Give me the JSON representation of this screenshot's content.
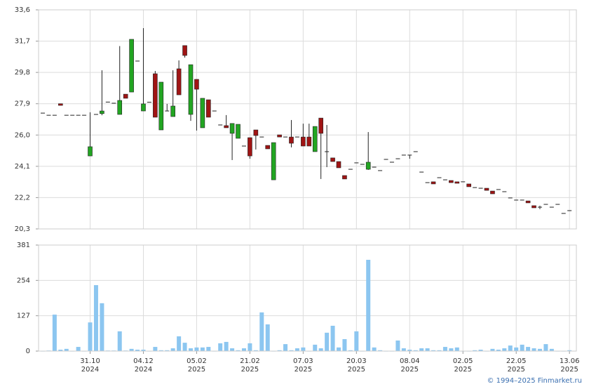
{
  "chart_data": [
    {
      "type": "candlestick",
      "open": [
        27.33,
        27.2,
        27.2,
        27.9,
        27.2,
        27.2,
        27.2,
        27.2,
        24.73,
        27.25,
        27.3,
        28.0,
        27.93,
        27.25,
        28.48,
        28.61,
        30.49,
        27.46,
        27.99,
        29.72,
        26.31,
        27.46,
        27.12,
        30.02,
        31.43,
        27.25,
        29.38,
        26.44,
        28.14,
        27.46,
        26.61,
        26.57,
        26.1,
        25.8,
        25.33,
        25.84,
        26.31,
        25.88,
        25.37,
        23.28,
        26.01,
        25.88,
        25.88,
        25.88,
        25.88,
        25.88,
        24.99,
        27.03,
        24.99,
        24.61,
        24.39,
        23.54,
        23.92,
        24.31,
        24.22,
        23.92,
        24.05,
        23.84,
        24.52,
        24.35,
        24.56,
        24.78,
        24.78,
        24.99,
        23.75,
        23.11,
        23.16,
        23.41,
        23.28,
        23.24,
        23.16,
        23.16,
        23.03,
        22.81,
        22.77,
        22.77,
        22.6,
        22.69,
        22.56,
        22.18,
        22.05,
        22.05,
        22.0,
        21.71,
        21.62,
        21.79,
        21.62,
        21.79,
        21.24,
        21.41
      ],
      "high": [
        27.33,
        27.2,
        27.2,
        27.9,
        27.2,
        27.2,
        27.2,
        27.2,
        27.38,
        27.25,
        29.93,
        28.0,
        27.93,
        31.4,
        28.48,
        31.81,
        30.49,
        32.49,
        27.99,
        29.89,
        29.21,
        27.89,
        29.93,
        30.53,
        31.43,
        30.27,
        29.38,
        28.23,
        28.14,
        27.46,
        26.61,
        27.21,
        26.7,
        26.65,
        25.33,
        25.84,
        26.31,
        25.88,
        25.37,
        25.54,
        26.01,
        25.88,
        26.91,
        25.88,
        26.69,
        26.69,
        26.52,
        27.03,
        26.61,
        24.61,
        24.39,
        23.54,
        23.92,
        24.31,
        24.22,
        26.18,
        24.05,
        23.84,
        24.52,
        24.35,
        24.56,
        24.78,
        24.78,
        24.99,
        23.75,
        23.11,
        23.16,
        23.41,
        23.28,
        23.24,
        23.16,
        23.16,
        23.03,
        22.81,
        22.77,
        22.77,
        22.6,
        22.69,
        22.56,
        22.18,
        22.05,
        22.05,
        22.0,
        21.71,
        21.71,
        21.79,
        21.62,
        21.79,
        21.24,
        21.41
      ],
      "low": [
        27.33,
        27.2,
        27.2,
        27.8,
        27.2,
        27.2,
        27.2,
        27.2,
        24.73,
        27.25,
        27.2,
        28.0,
        27.93,
        27.25,
        28.23,
        28.61,
        30.49,
        27.46,
        27.99,
        27.08,
        26.31,
        27.46,
        27.12,
        28.44,
        30.7,
        26.86,
        26.27,
        26.44,
        27.08,
        27.46,
        26.61,
        26.44,
        24.48,
        25.8,
        25.33,
        24.56,
        25.12,
        25.88,
        25.16,
        23.28,
        25.88,
        25.88,
        25.25,
        25.88,
        25.33,
        25.33,
        24.99,
        23.33,
        24.05,
        24.39,
        24.01,
        23.33,
        23.92,
        24.31,
        24.22,
        23.88,
        24.05,
        23.84,
        24.52,
        24.35,
        24.56,
        24.78,
        24.56,
        24.99,
        23.75,
        23.11,
        23.03,
        23.41,
        23.28,
        23.11,
        23.07,
        23.16,
        22.86,
        22.81,
        22.77,
        22.64,
        22.43,
        22.69,
        22.56,
        22.18,
        22.05,
        22.05,
        21.88,
        21.58,
        21.5,
        21.79,
        21.62,
        21.79,
        21.24,
        21.41
      ],
      "close": [
        27.33,
        27.2,
        27.2,
        27.8,
        27.2,
        27.2,
        27.2,
        27.2,
        25.29,
        27.25,
        27.46,
        28.0,
        27.93,
        28.1,
        28.23,
        31.81,
        30.49,
        27.89,
        27.99,
        27.08,
        29.21,
        27.46,
        27.76,
        28.44,
        30.83,
        30.27,
        28.78,
        28.23,
        27.08,
        27.46,
        26.61,
        26.44,
        26.7,
        26.65,
        25.33,
        24.73,
        25.97,
        25.88,
        25.16,
        25.54,
        25.88,
        25.88,
        25.5,
        25.88,
        25.33,
        25.33,
        26.52,
        26.1,
        24.99,
        24.39,
        24.01,
        23.33,
        23.92,
        24.31,
        24.22,
        24.35,
        24.05,
        23.84,
        24.52,
        24.35,
        24.56,
        24.78,
        24.78,
        24.99,
        23.75,
        23.11,
        23.03,
        23.41,
        23.28,
        23.11,
        23.07,
        23.16,
        22.86,
        22.81,
        22.77,
        22.64,
        22.43,
        22.69,
        22.56,
        22.18,
        22.05,
        22.05,
        21.88,
        21.58,
        21.62,
        21.79,
        21.62,
        21.79,
        21.24,
        21.41
      ],
      "up_color": "#22a522",
      "down_color": "#a01414",
      "flat_color": "#222222",
      "ylim": [
        20.3,
        33.6
      ],
      "yticks": [
        {
          "value": 20.3,
          "label": "20,3"
        },
        {
          "value": 22.2,
          "label": "22,2"
        },
        {
          "value": 24.1,
          "label": "24,1"
        },
        {
          "value": 26.0,
          "label": "26,0"
        },
        {
          "value": 27.9,
          "label": "27,9"
        },
        {
          "value": 29.8,
          "label": "29,8"
        },
        {
          "value": 31.7,
          "label": "31,7"
        },
        {
          "value": 33.6,
          "label": "33,6"
        }
      ],
      "grid": true
    },
    {
      "type": "bar",
      "categories": [
        null,
        null,
        null,
        null,
        null,
        null,
        null,
        null,
        [
          "31.10",
          "2024"
        ],
        null,
        null,
        null,
        null,
        null,
        null,
        null,
        null,
        [
          "04.12",
          "2024"
        ],
        null,
        null,
        null,
        null,
        null,
        null,
        null,
        null,
        [
          "05.02",
          "2025"
        ],
        null,
        null,
        null,
        null,
        null,
        null,
        null,
        null,
        [
          "21.02",
          "2025"
        ],
        null,
        null,
        null,
        null,
        null,
        null,
        null,
        null,
        [
          "07.03",
          "2025"
        ],
        null,
        null,
        null,
        null,
        null,
        null,
        null,
        null,
        [
          "20.03",
          "2025"
        ],
        null,
        null,
        null,
        null,
        null,
        null,
        null,
        null,
        [
          "08.04",
          "2025"
        ],
        null,
        null,
        null,
        null,
        null,
        null,
        null,
        null,
        [
          "02.05",
          "2025"
        ],
        null,
        null,
        null,
        null,
        null,
        null,
        null,
        null,
        [
          "22.05",
          "2025"
        ],
        null,
        null,
        null,
        null,
        null,
        null,
        null,
        null,
        [
          "13.06",
          "2025"
        ]
      ],
      "values": [
        1,
        2,
        131,
        5,
        8,
        1,
        15,
        1,
        103,
        237,
        172,
        2,
        2,
        71,
        2,
        8,
        5,
        5,
        1,
        15,
        3,
        3,
        10,
        53,
        30,
        10,
        13,
        13,
        15,
        1,
        28,
        33,
        10,
        3,
        10,
        28,
        3,
        139,
        96,
        1,
        3,
        25,
        3,
        10,
        13,
        1,
        23,
        10,
        66,
        91,
        13,
        43,
        3,
        71,
        1,
        328,
        13,
        3,
        1,
        1,
        38,
        10,
        5,
        3,
        10,
        10,
        3,
        3,
        15,
        10,
        13,
        1,
        1,
        3,
        5,
        1,
        8,
        5,
        10,
        20,
        13,
        23,
        15,
        10,
        8,
        25,
        8,
        1,
        1,
        3
      ],
      "color": "#8cc6f0",
      "ylim": [
        0,
        381
      ],
      "yticks": [
        0,
        127,
        254,
        381
      ],
      "grid": true
    }
  ],
  "credit": "© 1994–2025 Finmarket.ru"
}
